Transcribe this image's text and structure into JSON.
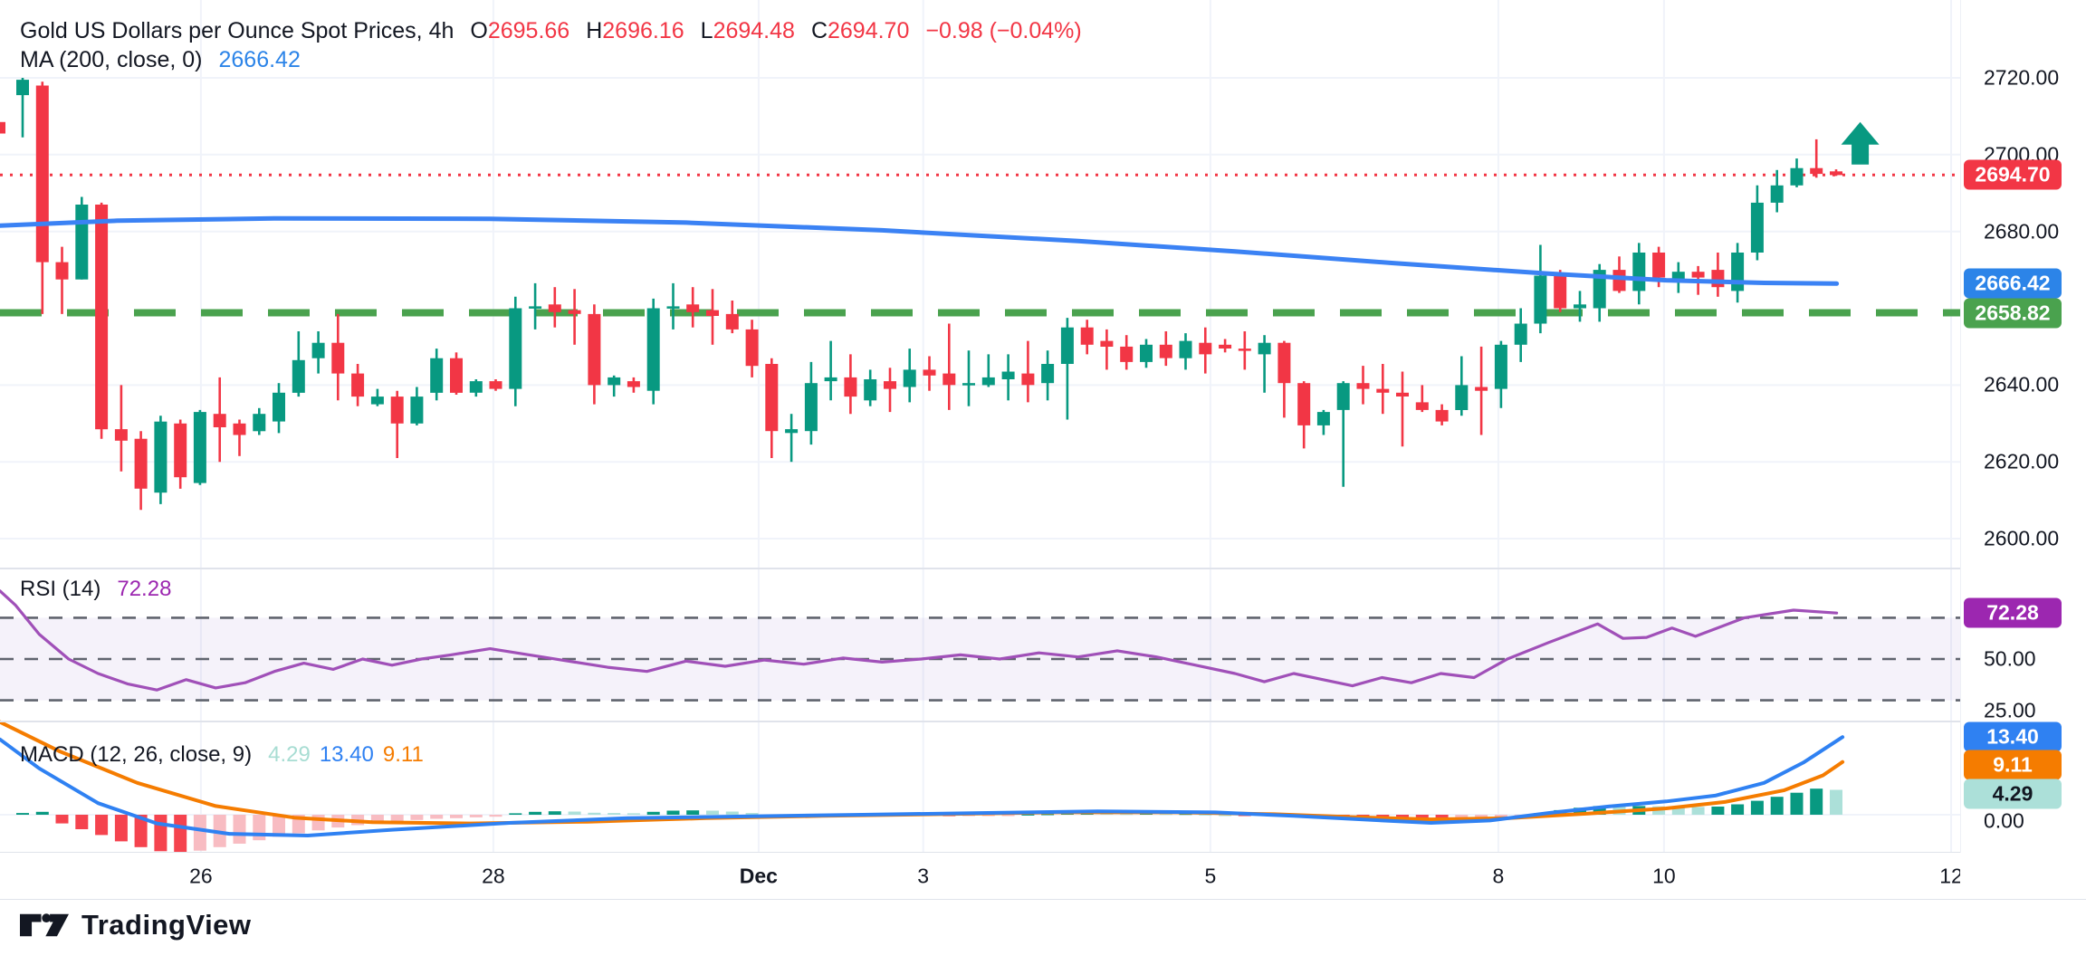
{
  "header": {
    "title": "Gold US Dollars per Ounce Spot Prices, 4h",
    "o_label": "O",
    "o": "2695.66",
    "h_label": "H",
    "h": "2696.16",
    "l_label": "L",
    "l": "2694.48",
    "c_label": "C",
    "c": "2694.70",
    "change": "−0.98 (−0.04%)"
  },
  "ma_legend": {
    "label": "MA (200, close, 0)",
    "value": "2666.42"
  },
  "rsi_legend": {
    "label": "RSI (14)",
    "value": "72.28"
  },
  "macd_legend": {
    "label": "MACD (12, 26, close, 9)",
    "hist": "4.29",
    "macd": "13.40",
    "signal": "9.11"
  },
  "footer": {
    "brand": "TradingView"
  },
  "colors": {
    "up": "#089981",
    "down": "#f23645",
    "hist_pos": "#089981",
    "hist_pos_light": "#ace0d9",
    "hist_neg": "#f5434e",
    "hist_neg_light": "#f8bcc2",
    "ma_line": "#3b82f4",
    "ma_badge": "#2c84e8",
    "last_price": "#f23645",
    "support": "#4aa24e",
    "rsi_line": "#a050b8",
    "rsi_badge": "#9c27b0",
    "macd_line": "#2f81f2",
    "signal_line": "#f57c00",
    "grid": "#f0f3fa",
    "divider": "#e0e3eb",
    "text": "#131722",
    "band_fill": "rgba(126,87,194,0.08)",
    "dash_gray": "#60646e"
  },
  "chart_data": {
    "type": "candlestick",
    "title": "Gold US Dollars per Ounce Spot Prices, 4h",
    "price_axis_ticks": [
      2720,
      2700,
      2680,
      2640,
      2620,
      2600
    ],
    "price_range_hint": [
      2592,
      2740
    ],
    "time_axis": [
      {
        "label": "26",
        "f": 0.1025
      },
      {
        "label": "28",
        "f": 0.2517
      },
      {
        "label": "Dec",
        "f": 0.387,
        "bold": true
      },
      {
        "label": "3",
        "f": 0.471
      },
      {
        "label": "5",
        "f": 0.6175
      },
      {
        "label": "8",
        "f": 0.7644
      },
      {
        "label": "10",
        "f": 0.8489
      },
      {
        "label": "12",
        "f": 0.9954
      }
    ],
    "candles": [
      [
        2715.5,
        2720,
        2704.5,
        2719.5
      ],
      [
        2718,
        2719,
        2658.5,
        2672
      ],
      [
        2672,
        2676,
        2658.5,
        2667.5
      ],
      [
        2667.5,
        2689,
        2667.5,
        2687
      ],
      [
        2687,
        2687.5,
        2626,
        2628.5
      ],
      [
        2628.5,
        2640,
        2617.5,
        2625.5
      ],
      [
        2626,
        2628,
        2607.5,
        2613
      ],
      [
        2612,
        2632,
        2609,
        2630.5
      ],
      [
        2630,
        2631,
        2613,
        2616
      ],
      [
        2614.5,
        2633.5,
        2614,
        2633
      ],
      [
        2632.5,
        2642,
        2620,
        2629
      ],
      [
        2630,
        2631,
        2621.5,
        2627
      ],
      [
        2628,
        2634,
        2627,
        2632.5
      ],
      [
        2630.5,
        2640.5,
        2627.5,
        2638
      ],
      [
        2638,
        2654,
        2637,
        2646.5
      ],
      [
        2647,
        2654,
        2643,
        2651
      ],
      [
        2651,
        2658.5,
        2636,
        2643
      ],
      [
        2643,
        2645.5,
        2634.5,
        2637
      ],
      [
        2635,
        2639,
        2634.5,
        2637
      ],
      [
        2637,
        2638.5,
        2621,
        2630
      ],
      [
        2630,
        2639.5,
        2629.5,
        2637
      ],
      [
        2638,
        2649.5,
        2636,
        2647
      ],
      [
        2647,
        2648.5,
        2637.5,
        2638
      ],
      [
        2638,
        2641.5,
        2637,
        2641
      ],
      [
        2641,
        2641.5,
        2638.5,
        2639
      ],
      [
        2639,
        2663,
        2634.5,
        2660
      ],
      [
        2660,
        2666.5,
        2654.5,
        2660.5
      ],
      [
        2661,
        2665.5,
        2655,
        2659
      ],
      [
        2659.5,
        2665,
        2650.5,
        2658.5
      ],
      [
        2658.5,
        2661,
        2635,
        2640
      ],
      [
        2640,
        2642.5,
        2637,
        2642
      ],
      [
        2641,
        2642,
        2638,
        2639.5
      ],
      [
        2638.5,
        2662.5,
        2635,
        2660
      ],
      [
        2660,
        2666.5,
        2654.5,
        2660.5
      ],
      [
        2661,
        2665.5,
        2655,
        2659
      ],
      [
        2659.5,
        2665,
        2650.5,
        2658
      ],
      [
        2658.5,
        2662,
        2653.5,
        2654.5
      ],
      [
        2654.5,
        2657,
        2642,
        2645
      ],
      [
        2645.5,
        2647,
        2621,
        2628
      ],
      [
        2627.5,
        2632.5,
        2620,
        2628.5
      ],
      [
        2628,
        2646,
        2624.5,
        2640.5
      ],
      [
        2641,
        2651.5,
        2636,
        2642
      ],
      [
        2642,
        2648,
        2632.5,
        2637
      ],
      [
        2636,
        2644,
        2634.5,
        2641.5
      ],
      [
        2641,
        2644.5,
        2633,
        2639
      ],
      [
        2639.5,
        2649.5,
        2635.5,
        2644
      ],
      [
        2644,
        2647.5,
        2638.5,
        2642.5
      ],
      [
        2643,
        2656,
        2633.5,
        2640
      ],
      [
        2640,
        2649,
        2634.5,
        2640.5
      ],
      [
        2640,
        2648,
        2639.5,
        2642
      ],
      [
        2641.5,
        2648,
        2636,
        2643.5
      ],
      [
        2643,
        2651.5,
        2635.5,
        2640
      ],
      [
        2640.5,
        2649,
        2636,
        2645.5
      ],
      [
        2645.5,
        2657.5,
        2631,
        2655
      ],
      [
        2655,
        2657,
        2648,
        2650.5
      ],
      [
        2651.5,
        2654.5,
        2644,
        2650
      ],
      [
        2650,
        2653,
        2644,
        2646
      ],
      [
        2646,
        2652,
        2644.5,
        2650.5
      ],
      [
        2650.5,
        2654,
        2645,
        2647
      ],
      [
        2647,
        2653.5,
        2644,
        2651.5
      ],
      [
        2651,
        2655,
        2643,
        2648
      ],
      [
        2650.5,
        2652,
        2648.5,
        2649.5
      ],
      [
        2649.5,
        2654,
        2644,
        2649
      ],
      [
        2648,
        2653,
        2638,
        2651
      ],
      [
        2651,
        2651.5,
        2631.5,
        2640.5
      ],
      [
        2640.5,
        2641,
        2623.5,
        2629.5
      ],
      [
        2629.5,
        2633.5,
        2627,
        2633
      ],
      [
        2633.5,
        2641,
        2613.5,
        2640.5
      ],
      [
        2640.5,
        2645,
        2635,
        2639
      ],
      [
        2639,
        2645.5,
        2632.5,
        2638
      ],
      [
        2638,
        2643.5,
        2624,
        2637
      ],
      [
        2635.5,
        2640,
        2633,
        2633.5
      ],
      [
        2633.5,
        2635,
        2629.5,
        2630.5
      ],
      [
        2633.5,
        2647.5,
        2632,
        2640
      ],
      [
        2639.5,
        2650,
        2627,
        2638.5
      ],
      [
        2639,
        2651.5,
        2634,
        2650.5
      ],
      [
        2650.5,
        2660,
        2646,
        2656
      ],
      [
        2656,
        2676.5,
        2653.5,
        2668.5
      ],
      [
        2669,
        2670,
        2659,
        2660
      ],
      [
        2660,
        2664.5,
        2656.5,
        2661
      ],
      [
        2660,
        2671.5,
        2656.5,
        2670
      ],
      [
        2670,
        2673.5,
        2664,
        2664.5
      ],
      [
        2664.5,
        2677,
        2661,
        2674.5
      ],
      [
        2674.5,
        2676,
        2665.5,
        2668
      ],
      [
        2667.5,
        2672,
        2664,
        2669.5
      ],
      [
        2669.5,
        2671,
        2663.5,
        2668
      ],
      [
        2670,
        2674.5,
        2663,
        2665.5
      ],
      [
        2664.5,
        2677,
        2661.5,
        2674.5
      ],
      [
        2674.5,
        2692,
        2672.5,
        2687.5
      ],
      [
        2687.5,
        2696,
        2685,
        2692
      ],
      [
        2692,
        2699,
        2691.5,
        2696.5
      ],
      [
        2696.5,
        2704,
        2694,
        2695
      ],
      [
        2695.66,
        2696.16,
        2694.48,
        2694.7
      ]
    ],
    "edge_candle_body": [
      2705.5,
      2708.5
    ],
    "levels": {
      "last_price": {
        "value": 2694.7,
        "style": "dotted"
      },
      "support": {
        "value": 2658.82,
        "style": "dashed"
      }
    },
    "ma200_points": [
      [
        0,
        2681.5
      ],
      [
        0.06,
        2682.8
      ],
      [
        0.14,
        2683.4
      ],
      [
        0.25,
        2683.3
      ],
      [
        0.35,
        2682.3
      ],
      [
        0.45,
        2680.3
      ],
      [
        0.55,
        2677.5
      ],
      [
        0.63,
        2674.8
      ],
      [
        0.71,
        2671.8
      ],
      [
        0.79,
        2669
      ],
      [
        0.85,
        2667.3
      ],
      [
        0.9,
        2666.6
      ],
      [
        0.937,
        2666.42
      ]
    ],
    "up_arrow_marker": {
      "x_f": 0.949,
      "tip_price": 2708.5
    },
    "rsi": {
      "value": 72.28,
      "guide_levels": [
        70,
        50,
        30
      ],
      "axis_ticks": [
        50,
        25
      ],
      "points": [
        [
          0,
          83
        ],
        [
          0.008,
          76
        ],
        [
          0.02,
          62
        ],
        [
          0.035,
          50
        ],
        [
          0.05,
          43
        ],
        [
          0.065,
          38
        ],
        [
          0.08,
          35
        ],
        [
          0.095,
          40
        ],
        [
          0.11,
          36
        ],
        [
          0.125,
          38.5
        ],
        [
          0.14,
          44
        ],
        [
          0.155,
          48
        ],
        [
          0.17,
          45
        ],
        [
          0.185,
          50
        ],
        [
          0.2,
          47
        ],
        [
          0.215,
          50
        ],
        [
          0.23,
          52
        ],
        [
          0.25,
          55
        ],
        [
          0.27,
          52
        ],
        [
          0.29,
          49
        ],
        [
          0.31,
          46
        ],
        [
          0.33,
          44
        ],
        [
          0.35,
          49
        ],
        [
          0.37,
          46.5
        ],
        [
          0.39,
          49.5
        ],
        [
          0.41,
          47.5
        ],
        [
          0.43,
          50.5
        ],
        [
          0.45,
          48.5
        ],
        [
          0.47,
          50
        ],
        [
          0.49,
          52
        ],
        [
          0.51,
          50
        ],
        [
          0.53,
          53
        ],
        [
          0.55,
          51
        ],
        [
          0.57,
          54
        ],
        [
          0.59,
          51
        ],
        [
          0.61,
          47
        ],
        [
          0.63,
          43
        ],
        [
          0.645,
          39
        ],
        [
          0.66,
          43
        ],
        [
          0.675,
          40
        ],
        [
          0.69,
          37
        ],
        [
          0.705,
          41
        ],
        [
          0.72,
          38.5
        ],
        [
          0.735,
          43
        ],
        [
          0.752,
          41
        ],
        [
          0.769,
          50
        ],
        [
          0.79,
          58
        ],
        [
          0.815,
          67
        ],
        [
          0.828,
          60
        ],
        [
          0.84,
          60.5
        ],
        [
          0.853,
          65
        ],
        [
          0.865,
          61
        ],
        [
          0.89,
          70
        ],
        [
          0.915,
          73.7
        ],
        [
          0.937,
          72.3
        ]
      ]
    },
    "macd": {
      "hist_value": 4.29,
      "macd_value": 13.4,
      "signal_value": 9.11,
      "axis_ticks": [
        0
      ],
      "hist": [
        0.3,
        0.5,
        -1.5,
        -2.5,
        -3.5,
        -4.6,
        -5.6,
        -6.3,
        -6.5,
        -6.2,
        -5.6,
        -5.0,
        -4.4,
        -3.8,
        -3.2,
        -2.7,
        -2.2,
        -1.8,
        -1.5,
        -1.2,
        -0.9,
        -0.7,
        -0.6,
        -0.45,
        -0.35,
        0.25,
        0.5,
        0.6,
        0.55,
        0.35,
        0.3,
        0.25,
        0.5,
        0.7,
        0.75,
        0.7,
        0.55,
        0.3,
        -0.15,
        -0.4,
        -0.35,
        -0.25,
        -0.3,
        -0.25,
        -0.3,
        -0.2,
        -0.2,
        -0.25,
        -0.2,
        -0.15,
        -0.1,
        0.1,
        0.15,
        0.3,
        0.35,
        0.3,
        0.2,
        0.25,
        0.2,
        0.2,
        0.1,
        0,
        -0.1,
        -0.15,
        -0.3,
        -0.5,
        -0.7,
        -0.85,
        -1.0,
        -1.15,
        -1.3,
        -1.4,
        -1.45,
        -1.3,
        -1.1,
        -0.8,
        -0.4,
        0.3,
        0.8,
        1.2,
        1.5,
        1.4,
        1.5,
        1.45,
        1.4,
        1.35,
        1.4,
        1.8,
        2.4,
        3.1,
        3.8,
        4.5,
        4.29
      ],
      "macd_points": [
        [
          0,
          13
        ],
        [
          0.02,
          8
        ],
        [
          0.05,
          2
        ],
        [
          0.08,
          -1.5
        ],
        [
          0.117,
          -3.3
        ],
        [
          0.157,
          -3.6
        ],
        [
          0.2,
          -2.6
        ],
        [
          0.26,
          -1.4
        ],
        [
          0.32,
          -0.6
        ],
        [
          0.38,
          -0.3
        ],
        [
          0.44,
          0
        ],
        [
          0.5,
          0.3
        ],
        [
          0.56,
          0.6
        ],
        [
          0.62,
          0.4
        ],
        [
          0.66,
          -0.2
        ],
        [
          0.7,
          -0.9
        ],
        [
          0.73,
          -1.4
        ],
        [
          0.76,
          -1.0
        ],
        [
          0.79,
          0.3
        ],
        [
          0.82,
          1.4
        ],
        [
          0.85,
          2.3
        ],
        [
          0.875,
          3.3
        ],
        [
          0.9,
          5.5
        ],
        [
          0.92,
          9
        ],
        [
          0.94,
          13.4
        ]
      ],
      "signal_points": [
        [
          0,
          16
        ],
        [
          0.03,
          11
        ],
        [
          0.07,
          5.5
        ],
        [
          0.11,
          1.5
        ],
        [
          0.15,
          -0.5
        ],
        [
          0.19,
          -1.3
        ],
        [
          0.24,
          -1.5
        ],
        [
          0.3,
          -1.2
        ],
        [
          0.36,
          -0.6
        ],
        [
          0.42,
          -0.2
        ],
        [
          0.48,
          0.1
        ],
        [
          0.54,
          0.4
        ],
        [
          0.6,
          0.4
        ],
        [
          0.65,
          0.1
        ],
        [
          0.69,
          -0.4
        ],
        [
          0.73,
          -0.8
        ],
        [
          0.77,
          -0.6
        ],
        [
          0.81,
          0.2
        ],
        [
          0.85,
          1.1
        ],
        [
          0.88,
          2.2
        ],
        [
          0.91,
          4.2
        ],
        [
          0.93,
          6.8
        ],
        [
          0.94,
          9.11
        ]
      ]
    },
    "badges": {
      "last_price": "2694.70",
      "ma": "2666.42",
      "support": "2658.82",
      "rsi": "72.28",
      "macd": "13.40",
      "signal": "9.11",
      "hist": "4.29"
    }
  }
}
